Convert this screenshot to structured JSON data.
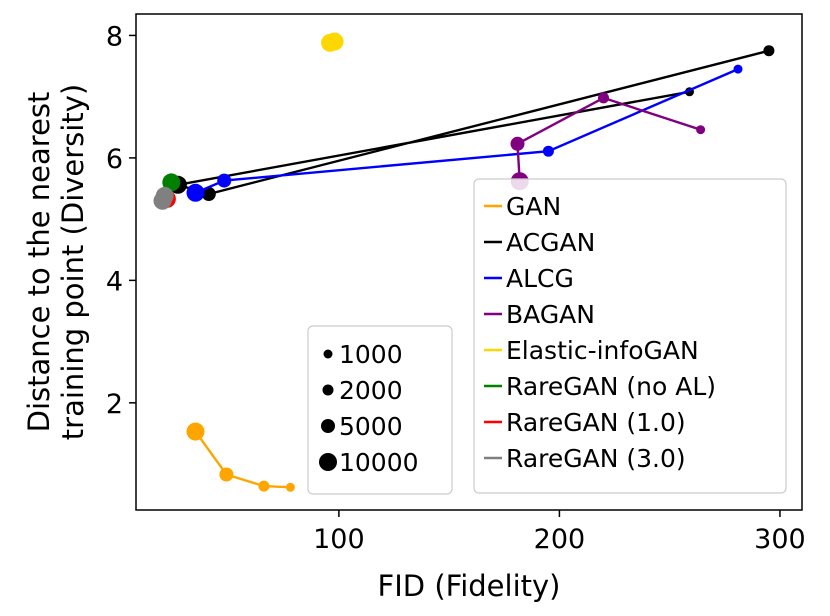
{
  "chart_data": {
    "type": "scatter",
    "xlabel": "FID (Fidelity)",
    "ylabel_lines": [
      "Distance to the nearest",
      "training point (Diversity)"
    ],
    "xlim": [
      8,
      310
    ],
    "ylim": [
      0.25,
      8.35
    ],
    "xticks": [
      100,
      200,
      300
    ],
    "yticks": [
      2,
      4,
      6,
      8
    ],
    "grid": false,
    "legend_position": "right",
    "size_legend_position": "bottom-center",
    "size_legend": [
      {
        "label": "1000",
        "radius": 4.5
      },
      {
        "label": "2000",
        "radius": 5.5
      },
      {
        "label": "5000",
        "radius": 7
      },
      {
        "label": "10000",
        "radius": 9
      }
    ],
    "series": [
      {
        "name": "GAN",
        "color": "#ffa500",
        "points": [
          {
            "x": 78,
            "y": 0.62,
            "n": 1000
          },
          {
            "x": 66,
            "y": 0.64,
            "n": 2000
          },
          {
            "x": 49,
            "y": 0.83,
            "n": 5000
          },
          {
            "x": 35,
            "y": 1.53,
            "n": 10000
          }
        ]
      },
      {
        "name": "ACGAN",
        "color": "#000000",
        "points": [
          {
            "x": 295,
            "y": 7.75,
            "n": 2000
          },
          {
            "x": 41,
            "y": 5.41,
            "n": 5000
          },
          {
            "x": 27,
            "y": 5.56,
            "n": 10000
          },
          {
            "x": 259,
            "y": 7.08,
            "n": 1000
          }
        ]
      },
      {
        "name": "ALCG",
        "color": "#0000ff",
        "points": [
          {
            "x": 281,
            "y": 7.45,
            "n": 1000
          },
          {
            "x": 195,
            "y": 6.11,
            "n": 2000
          },
          {
            "x": 48,
            "y": 5.63,
            "n": 5000
          },
          {
            "x": 35,
            "y": 5.43,
            "n": 10000
          }
        ]
      },
      {
        "name": "BAGAN",
        "color": "#800080",
        "points": [
          {
            "x": 264,
            "y": 6.46,
            "n": 1000
          },
          {
            "x": 220,
            "y": 6.98,
            "n": 2000
          },
          {
            "x": 181,
            "y": 6.23,
            "n": 5000
          },
          {
            "x": 182,
            "y": 5.62,
            "n": 10000
          }
        ]
      },
      {
        "name": "Elastic-infoGAN",
        "color": "#ffd700",
        "points": [
          {
            "x": 96,
            "y": 7.88,
            "n": 10000
          },
          {
            "x": 98,
            "y": 7.9,
            "n": 10000
          }
        ]
      },
      {
        "name": "RareGAN (no AL)",
        "color": "#008000",
        "points": [
          {
            "x": 24,
            "y": 5.6,
            "n": 10000
          }
        ]
      },
      {
        "name": "RareGAN (1.0)",
        "color": "#ff0000",
        "points": [
          {
            "x": 22,
            "y": 5.33,
            "n": 10000
          }
        ]
      },
      {
        "name": "RareGAN (3.0)",
        "color": "#808080",
        "points": [
          {
            "x": 20,
            "y": 5.3,
            "n": 10000
          },
          {
            "x": 21,
            "y": 5.38,
            "n": 10000
          }
        ]
      }
    ]
  }
}
